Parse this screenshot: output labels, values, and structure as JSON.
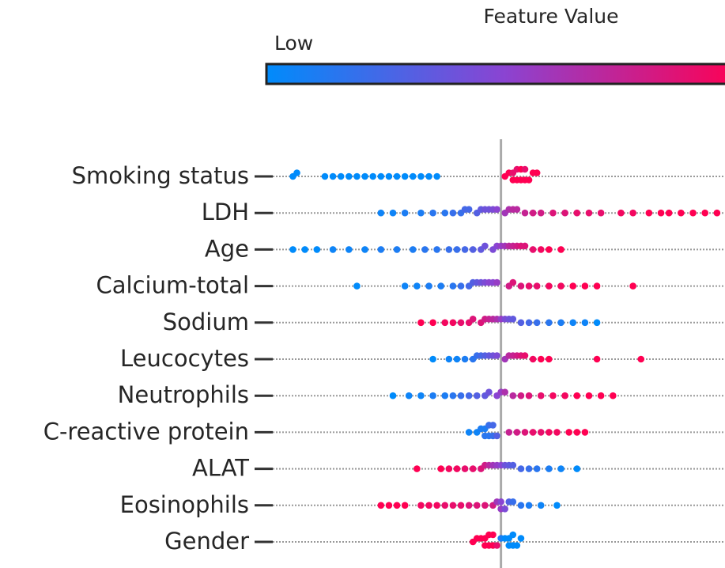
{
  "chart_data": {
    "type": "beeswarm",
    "colorbar_label": "Feature Value",
    "low_label": "Low",
    "colormap": [
      "#008bfb",
      "#8a44d2",
      "#ff0052"
    ],
    "xlim": [
      -0.6,
      0.56
    ],
    "categories": [
      "Smoking status",
      "LDH",
      "Age",
      "Calcium-total",
      "Sodium",
      "Leucocytes",
      "Neutrophils",
      "C-reactive protein",
      "ALAT",
      "Eosinophils",
      "Gender"
    ],
    "points": [
      [
        [
          -0.52,
          0
        ],
        [
          -0.51,
          0
        ],
        [
          -0.44,
          0
        ],
        [
          -0.42,
          0
        ],
        [
          -0.4,
          0
        ],
        [
          -0.38,
          0
        ],
        [
          -0.36,
          0
        ],
        [
          -0.34,
          0
        ],
        [
          -0.32,
          0
        ],
        [
          -0.3,
          0
        ],
        [
          -0.28,
          0
        ],
        [
          -0.26,
          0
        ],
        [
          -0.24,
          0
        ],
        [
          -0.22,
          0
        ],
        [
          -0.2,
          0
        ],
        [
          -0.18,
          0
        ],
        [
          -0.16,
          0
        ],
        [
          0.01,
          1
        ],
        [
          0.02,
          1
        ],
        [
          0.03,
          0.9
        ],
        [
          0.03,
          1
        ],
        [
          0.04,
          1
        ],
        [
          0.04,
          0.9
        ],
        [
          0.05,
          1
        ],
        [
          0.05,
          1
        ],
        [
          0.06,
          1
        ],
        [
          0.06,
          0.9
        ],
        [
          0.07,
          1
        ],
        [
          0.08,
          1
        ],
        [
          0.09,
          1
        ]
      ],
      [
        [
          -0.3,
          0.05
        ],
        [
          -0.27,
          0.05
        ],
        [
          -0.24,
          0.1
        ],
        [
          -0.2,
          0.1
        ],
        [
          -0.17,
          0.15
        ],
        [
          -0.14,
          0.15
        ],
        [
          -0.12,
          0.2
        ],
        [
          -0.1,
          0.2
        ],
        [
          -0.09,
          0.25
        ],
        [
          -0.08,
          0.25
        ],
        [
          -0.06,
          0.3
        ],
        [
          -0.05,
          0.35
        ],
        [
          -0.04,
          0.4
        ],
        [
          -0.03,
          0.4
        ],
        [
          -0.02,
          0.45
        ],
        [
          -0.01,
          0.5
        ],
        [
          0.01,
          0.6
        ],
        [
          0.02,
          0.65
        ],
        [
          0.03,
          0.7
        ],
        [
          0.04,
          0.7
        ],
        [
          0.06,
          0.75
        ],
        [
          0.08,
          0.8
        ],
        [
          0.1,
          0.8
        ],
        [
          0.13,
          0.85
        ],
        [
          0.16,
          0.85
        ],
        [
          0.19,
          0.9
        ],
        [
          0.22,
          0.9
        ],
        [
          0.25,
          0.9
        ],
        [
          0.3,
          0.95
        ],
        [
          0.33,
          0.95
        ],
        [
          0.37,
          1
        ],
        [
          0.4,
          1
        ],
        [
          0.42,
          1
        ],
        [
          0.45,
          1
        ],
        [
          0.48,
          1
        ],
        [
          0.51,
          1
        ],
        [
          0.54,
          1
        ]
      ],
      [
        [
          -0.52,
          0
        ],
        [
          -0.49,
          0
        ],
        [
          -0.46,
          0
        ],
        [
          -0.42,
          0.05
        ],
        [
          -0.38,
          0.05
        ],
        [
          -0.34,
          0.05
        ],
        [
          -0.3,
          0.1
        ],
        [
          -0.26,
          0.1
        ],
        [
          -0.22,
          0.1
        ],
        [
          -0.19,
          0.15
        ],
        [
          -0.16,
          0.15
        ],
        [
          -0.13,
          0.2
        ],
        [
          -0.11,
          0.2
        ],
        [
          -0.09,
          0.25
        ],
        [
          -0.07,
          0.3
        ],
        [
          -0.05,
          0.35
        ],
        [
          -0.04,
          0.4
        ],
        [
          -0.02,
          0.45
        ],
        [
          -0.01,
          0.5
        ],
        [
          0.0,
          0.55
        ],
        [
          0.01,
          0.6
        ],
        [
          0.02,
          0.7
        ],
        [
          0.03,
          0.75
        ],
        [
          0.04,
          0.8
        ],
        [
          0.05,
          0.85
        ],
        [
          0.06,
          0.85
        ],
        [
          0.08,
          0.9
        ],
        [
          0.1,
          0.95
        ],
        [
          0.12,
          1
        ],
        [
          0.15,
          1
        ]
      ],
      [
        [
          -0.36,
          0
        ],
        [
          -0.24,
          0.05
        ],
        [
          -0.21,
          0.05
        ],
        [
          -0.18,
          0.1
        ],
        [
          -0.15,
          0.1
        ],
        [
          -0.12,
          0.15
        ],
        [
          -0.1,
          0.2
        ],
        [
          -0.08,
          0.25
        ],
        [
          -0.07,
          0.3
        ],
        [
          -0.06,
          0.35
        ],
        [
          -0.05,
          0.4
        ],
        [
          -0.04,
          0.45
        ],
        [
          -0.03,
          0.5
        ],
        [
          -0.02,
          0.5
        ],
        [
          -0.01,
          0.55
        ],
        [
          0.02,
          0.8
        ],
        [
          0.03,
          0.85
        ],
        [
          0.05,
          0.85
        ],
        [
          0.07,
          0.9
        ],
        [
          0.09,
          0.9
        ],
        [
          0.12,
          0.95
        ],
        [
          0.15,
          0.95
        ],
        [
          0.18,
          1
        ],
        [
          0.21,
          1
        ],
        [
          0.24,
          1
        ],
        [
          0.33,
          1
        ]
      ],
      [
        [
          -0.2,
          1
        ],
        [
          -0.17,
          1
        ],
        [
          -0.14,
          0.95
        ],
        [
          -0.12,
          0.95
        ],
        [
          -0.1,
          0.9
        ],
        [
          -0.08,
          0.9
        ],
        [
          -0.07,
          0.85
        ],
        [
          -0.05,
          0.85
        ],
        [
          -0.04,
          0.8
        ],
        [
          -0.03,
          0.75
        ],
        [
          -0.02,
          0.7
        ],
        [
          -0.01,
          0.65
        ],
        [
          0.0,
          0.55
        ],
        [
          0.01,
          0.45
        ],
        [
          0.02,
          0.4
        ],
        [
          0.03,
          0.35
        ],
        [
          0.05,
          0.3
        ],
        [
          0.07,
          0.25
        ],
        [
          0.09,
          0.2
        ],
        [
          0.12,
          0.15
        ],
        [
          0.15,
          0.1
        ],
        [
          0.18,
          0.05
        ],
        [
          0.21,
          0.05
        ],
        [
          0.24,
          0
        ]
      ],
      [
        [
          -0.17,
          0
        ],
        [
          -0.13,
          0.05
        ],
        [
          -0.11,
          0.05
        ],
        [
          -0.09,
          0.1
        ],
        [
          -0.07,
          0.15
        ],
        [
          -0.06,
          0.2
        ],
        [
          -0.05,
          0.25
        ],
        [
          -0.04,
          0.3
        ],
        [
          -0.03,
          0.35
        ],
        [
          -0.02,
          0.4
        ],
        [
          -0.01,
          0.45
        ],
        [
          0.01,
          0.6
        ],
        [
          0.02,
          0.7
        ],
        [
          0.03,
          0.75
        ],
        [
          0.04,
          0.8
        ],
        [
          0.05,
          0.85
        ],
        [
          0.06,
          0.9
        ],
        [
          0.08,
          0.95
        ],
        [
          0.1,
          1
        ],
        [
          0.12,
          1
        ],
        [
          0.24,
          1
        ],
        [
          0.35,
          1
        ]
      ],
      [
        [
          -0.27,
          0
        ],
        [
          -0.23,
          0.05
        ],
        [
          -0.2,
          0.05
        ],
        [
          -0.17,
          0.1
        ],
        [
          -0.14,
          0.1
        ],
        [
          -0.12,
          0.15
        ],
        [
          -0.1,
          0.2
        ],
        [
          -0.08,
          0.25
        ],
        [
          -0.06,
          0.3
        ],
        [
          -0.04,
          0.35
        ],
        [
          -0.03,
          0.4
        ],
        [
          -0.01,
          0.5
        ],
        [
          0.0,
          0.55
        ],
        [
          0.01,
          0.65
        ],
        [
          0.03,
          0.7
        ],
        [
          0.05,
          0.8
        ],
        [
          0.07,
          0.85
        ],
        [
          0.1,
          0.9
        ],
        [
          0.13,
          0.95
        ],
        [
          0.16,
          0.95
        ],
        [
          0.19,
          1
        ],
        [
          0.22,
          1
        ],
        [
          0.25,
          1
        ],
        [
          0.28,
          1
        ]
      ],
      [
        [
          -0.08,
          0.05
        ],
        [
          -0.06,
          0.05
        ],
        [
          -0.05,
          0.1
        ],
        [
          -0.04,
          0.1
        ],
        [
          -0.04,
          0.15
        ],
        [
          -0.03,
          0.15
        ],
        [
          -0.03,
          0.2
        ],
        [
          -0.02,
          0.2
        ],
        [
          -0.02,
          0.25
        ],
        [
          -0.01,
          0.3
        ],
        [
          0.02,
          0.75
        ],
        [
          0.04,
          0.8
        ],
        [
          0.06,
          0.85
        ],
        [
          0.08,
          0.9
        ],
        [
          0.1,
          0.9
        ],
        [
          0.12,
          0.95
        ],
        [
          0.14,
          0.95
        ],
        [
          0.17,
          1
        ],
        [
          0.19,
          1
        ],
        [
          0.21,
          1
        ]
      ],
      [
        [
          -0.21,
          1
        ],
        [
          -0.15,
          1
        ],
        [
          -0.13,
          0.95
        ],
        [
          -0.11,
          0.95
        ],
        [
          -0.09,
          0.9
        ],
        [
          -0.07,
          0.9
        ],
        [
          -0.05,
          0.85
        ],
        [
          -0.04,
          0.8
        ],
        [
          -0.03,
          0.7
        ],
        [
          -0.02,
          0.6
        ],
        [
          -0.01,
          0.55
        ],
        [
          0.0,
          0.5
        ],
        [
          0.01,
          0.4
        ],
        [
          0.02,
          0.35
        ],
        [
          0.03,
          0.3
        ],
        [
          0.05,
          0.25
        ],
        [
          0.07,
          0.2
        ],
        [
          0.09,
          0.15
        ],
        [
          0.12,
          0.1
        ],
        [
          0.15,
          0.05
        ],
        [
          0.19,
          0
        ]
      ],
      [
        [
          -0.3,
          1
        ],
        [
          -0.28,
          1
        ],
        [
          -0.26,
          1
        ],
        [
          -0.24,
          1
        ],
        [
          -0.2,
          0.95
        ],
        [
          -0.18,
          0.95
        ],
        [
          -0.16,
          0.95
        ],
        [
          -0.14,
          0.9
        ],
        [
          -0.12,
          0.9
        ],
        [
          -0.1,
          0.9
        ],
        [
          -0.08,
          0.85
        ],
        [
          -0.06,
          0.85
        ],
        [
          -0.04,
          0.85
        ],
        [
          -0.02,
          0.8
        ],
        [
          -0.01,
          0.6
        ],
        [
          0.0,
          0.5
        ],
        [
          0.0,
          0.55
        ],
        [
          0.01,
          0.45
        ],
        [
          0.02,
          0.3
        ],
        [
          0.03,
          0.2
        ],
        [
          0.05,
          0.15
        ],
        [
          0.07,
          0.1
        ],
        [
          0.1,
          0.05
        ],
        [
          0.14,
          0
        ]
      ],
      [
        [
          -0.07,
          1
        ],
        [
          -0.06,
          1
        ],
        [
          -0.05,
          1
        ],
        [
          -0.04,
          1
        ],
        [
          -0.04,
          1
        ],
        [
          -0.03,
          1
        ],
        [
          -0.03,
          1
        ],
        [
          -0.02,
          1
        ],
        [
          -0.02,
          1
        ],
        [
          -0.01,
          0.9
        ],
        [
          0.0,
          0.1
        ],
        [
          0.01,
          0
        ],
        [
          0.02,
          0
        ],
        [
          0.02,
          0
        ],
        [
          0.03,
          0
        ],
        [
          0.03,
          0
        ],
        [
          0.04,
          0
        ],
        [
          0.05,
          0
        ]
      ]
    ]
  }
}
